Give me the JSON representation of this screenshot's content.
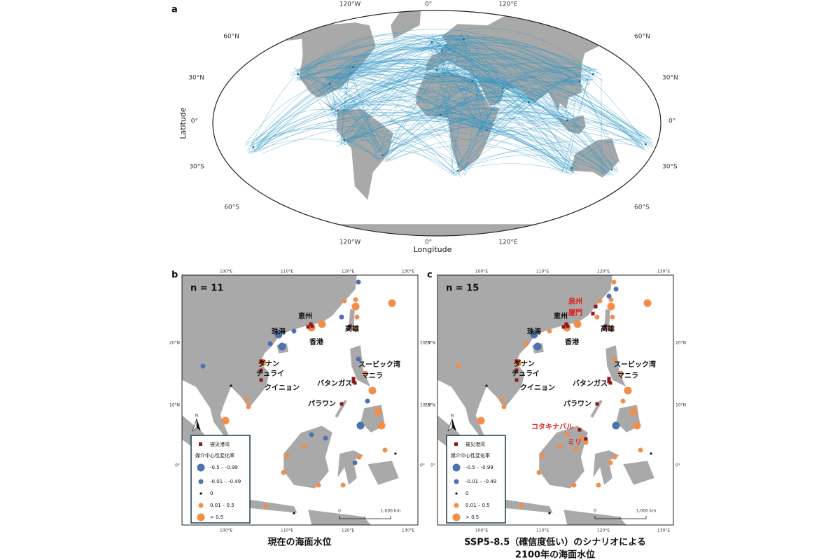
{
  "panel_a": {
    "label": "a",
    "lon_ticks": [
      "120°W",
      "0°",
      "120°E"
    ],
    "lat_ticks": [
      "60°N",
      "30°N",
      "0°",
      "30°S",
      "60°S"
    ],
    "y_label": "Latitude",
    "x_label": "Longitude"
  },
  "panel_b": {
    "label": "b",
    "count": "n = 11",
    "ports": [
      "恵州",
      "珠海",
      "香港",
      "高雄",
      "ダナン",
      "チュライ",
      "クイニョン",
      "スービック湾",
      "マニラ",
      "バタンガス",
      "パラワン"
    ],
    "caption": [
      "現在の海面水位"
    ]
  },
  "panel_c": {
    "label": "c",
    "count": "n = 15",
    "ports": [
      "恵州",
      "珠海",
      "香港",
      "高雄",
      "ダナン",
      "チュライ",
      "クイニョン",
      "スービック湾",
      "マニラ",
      "バタンガス",
      "パラワン"
    ],
    "new_ports": [
      "泉州",
      "廈門",
      "コタキナバル",
      "ミリ"
    ],
    "caption": [
      "SSP5-8.5（確信度低い）のシナリオによる",
      "2100年の海面水位"
    ]
  },
  "regional_ticks": {
    "lon_ticks": [
      "100°E",
      "110°E",
      "120°E",
      "130°E"
    ],
    "lat_ticks": [
      "20°N",
      "10°N",
      "0°"
    ]
  },
  "legend": {
    "north": "N",
    "damaged_ports": "被災港湾",
    "centrality_title": "媒介中心性変化率",
    "classes": [
      "-0.5 – -0.99",
      "-0.01 – -0.49",
      "0",
      "0.01 – 0.5",
      "> 0.5"
    ]
  },
  "scale_bar": {
    "start": "0",
    "end": "1,000 km"
  }
}
